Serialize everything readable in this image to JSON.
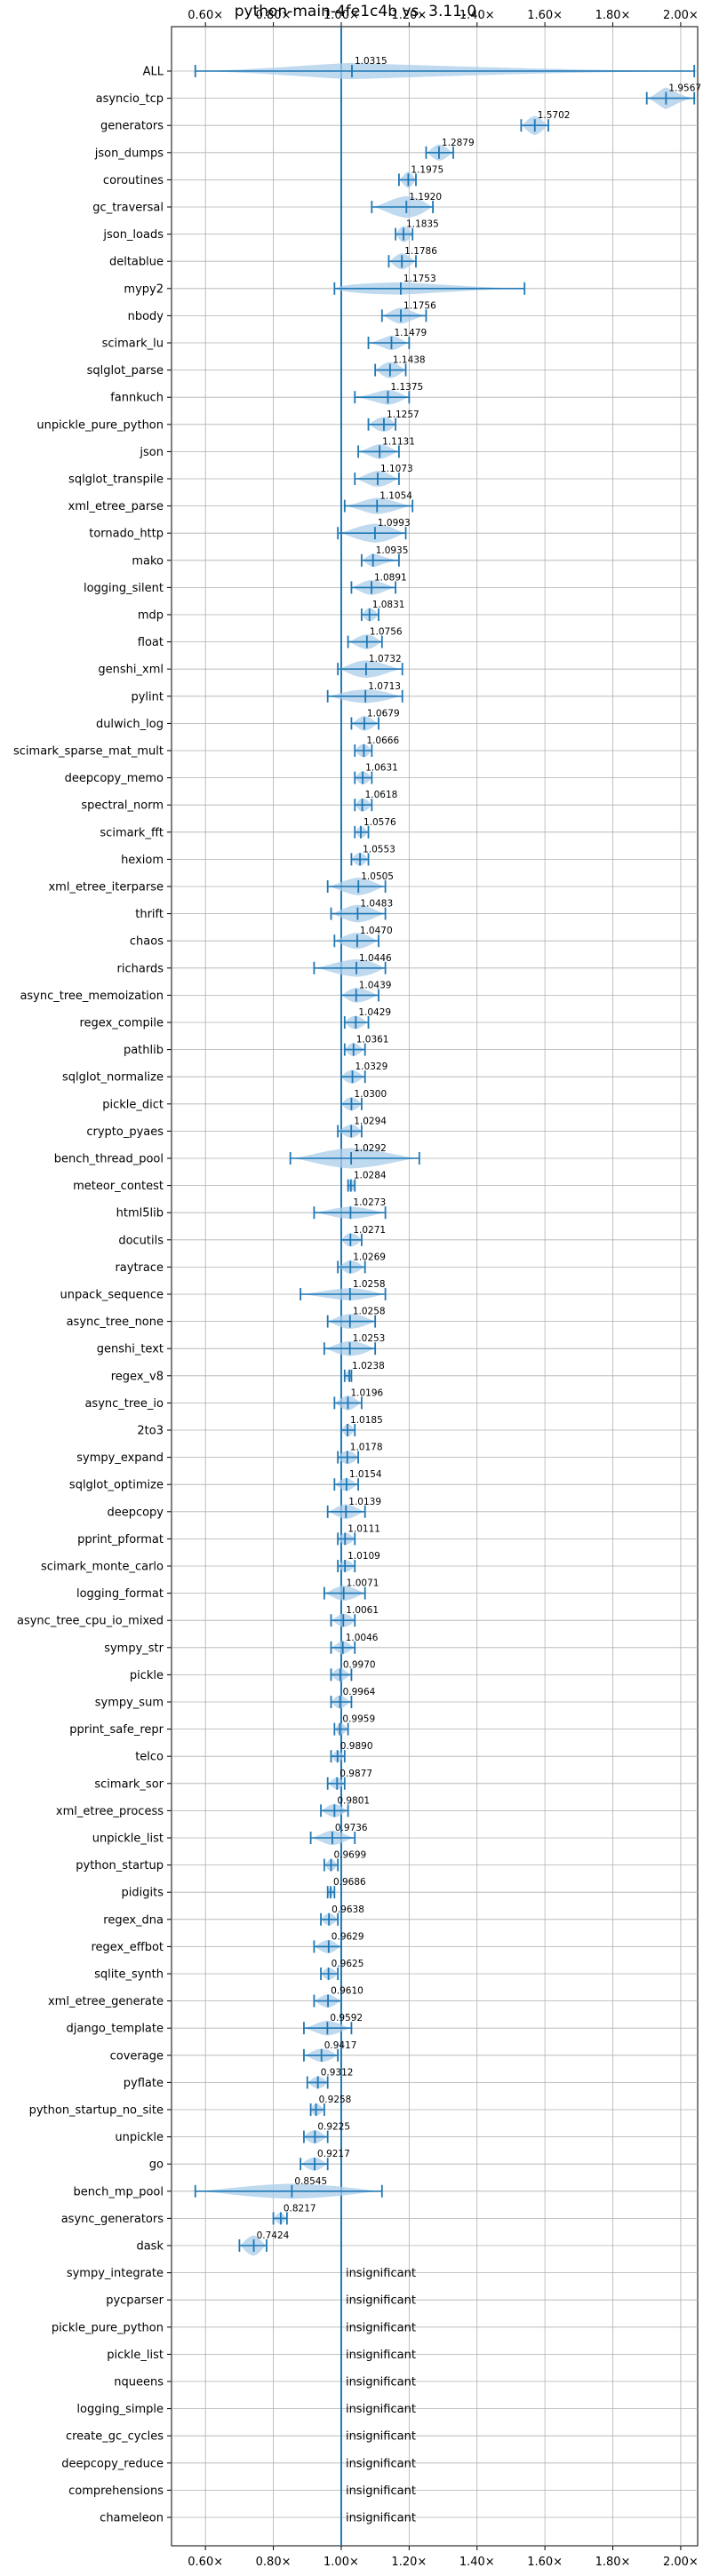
{
  "chart_data": {
    "type": "violin",
    "title": "python-main-4fe1c4b vs. 3.11.0",
    "xlabel": "",
    "ylabel": "",
    "xlim": [
      0.5,
      2.05
    ],
    "x_ticks": [
      0.6,
      0.8,
      1.0,
      1.2,
      1.4,
      1.6,
      1.8,
      2.0
    ],
    "x_tick_labels": [
      "0.60×",
      "0.80×",
      "1.00×",
      "1.20×",
      "1.40×",
      "1.60×",
      "1.80×",
      "2.00×"
    ],
    "reference_line": 1.0,
    "grid": true,
    "colors": {
      "violin": "#a9cce9",
      "line": "#1f77b4",
      "grid": "#b0b0b0"
    },
    "insignificant_label": "insignificant",
    "benchmarks": [
      {
        "name": "ALL",
        "label": "1.0315",
        "mean": 1.0315,
        "min": 0.57,
        "max": 2.04,
        "q1": 0.93,
        "q3": 1.15,
        "width": 0.6
      },
      {
        "name": "asyncio_tcp",
        "label": "1.9567",
        "mean": 1.9567,
        "min": 1.9,
        "max": 2.04,
        "q1": 1.94,
        "q3": 1.97,
        "width": 0.8
      },
      {
        "name": "generators",
        "label": "1.5702",
        "mean": 1.5702,
        "min": 1.53,
        "max": 1.61,
        "q1": 1.55,
        "q3": 1.59,
        "width": 0.7
      },
      {
        "name": "json_dumps",
        "label": "1.2879",
        "mean": 1.2879,
        "min": 1.25,
        "max": 1.33,
        "q1": 1.27,
        "q3": 1.31,
        "width": 0.6
      },
      {
        "name": "coroutines",
        "label": "1.1975",
        "mean": 1.1975,
        "min": 1.17,
        "max": 1.22,
        "q1": 1.185,
        "q3": 1.21,
        "width": 0.6
      },
      {
        "name": "gc_traversal",
        "label": "1.1920",
        "mean": 1.192,
        "min": 1.09,
        "max": 1.27,
        "q1": 1.15,
        "q3": 1.24,
        "width": 0.8
      },
      {
        "name": "json_loads",
        "label": "1.1835",
        "mean": 1.1835,
        "min": 1.16,
        "max": 1.21,
        "q1": 1.17,
        "q3": 1.2,
        "width": 0.6
      },
      {
        "name": "deltablue",
        "label": "1.1786",
        "mean": 1.1786,
        "min": 1.14,
        "max": 1.22,
        "q1": 1.16,
        "q3": 1.2,
        "width": 0.6
      },
      {
        "name": "mypy2",
        "label": "1.1753",
        "mean": 1.1753,
        "min": 0.98,
        "max": 1.54,
        "q1": 1.0,
        "q3": 1.25,
        "width": 0.45
      },
      {
        "name": "nbody",
        "label": "1.1756",
        "mean": 1.1756,
        "min": 1.12,
        "max": 1.25,
        "q1": 1.15,
        "q3": 1.2,
        "width": 0.6
      },
      {
        "name": "scimark_lu",
        "label": "1.1479",
        "mean": 1.1479,
        "min": 1.08,
        "max": 1.2,
        "q1": 1.13,
        "q3": 1.17,
        "width": 0.55
      },
      {
        "name": "sqlglot_parse",
        "label": "1.1438",
        "mean": 1.1438,
        "min": 1.1,
        "max": 1.19,
        "q1": 1.12,
        "q3": 1.17,
        "width": 0.6
      },
      {
        "name": "fannkuch",
        "label": "1.1375",
        "mean": 1.1375,
        "min": 1.04,
        "max": 1.2,
        "q1": 1.11,
        "q3": 1.17,
        "width": 0.55
      },
      {
        "name": "unpickle_pure_python",
        "label": "1.1257",
        "mean": 1.1257,
        "min": 1.08,
        "max": 1.16,
        "q1": 1.1,
        "q3": 1.15,
        "width": 0.55
      },
      {
        "name": "json",
        "label": "1.1131",
        "mean": 1.1131,
        "min": 1.05,
        "max": 1.17,
        "q1": 1.09,
        "q3": 1.14,
        "width": 0.55
      },
      {
        "name": "sqlglot_transpile",
        "label": "1.1073",
        "mean": 1.1073,
        "min": 1.04,
        "max": 1.17,
        "q1": 1.08,
        "q3": 1.14,
        "width": 0.6
      },
      {
        "name": "xml_etree_parse",
        "label": "1.1054",
        "mean": 1.1054,
        "min": 1.01,
        "max": 1.21,
        "q1": 1.07,
        "q3": 1.15,
        "width": 0.6
      },
      {
        "name": "tornado_http",
        "label": "1.0993",
        "mean": 1.0993,
        "min": 0.99,
        "max": 1.19,
        "q1": 1.05,
        "q3": 1.15,
        "width": 0.7
      },
      {
        "name": "mako",
        "label": "1.0935",
        "mean": 1.0935,
        "min": 1.06,
        "max": 1.17,
        "q1": 1.08,
        "q3": 1.11,
        "width": 0.5
      },
      {
        "name": "logging_silent",
        "label": "1.0891",
        "mean": 1.0891,
        "min": 1.03,
        "max": 1.16,
        "q1": 1.06,
        "q3": 1.12,
        "width": 0.55
      },
      {
        "name": "mdp",
        "label": "1.0831",
        "mean": 1.0831,
        "min": 1.06,
        "max": 1.11,
        "q1": 1.07,
        "q3": 1.1,
        "width": 0.5
      },
      {
        "name": "float",
        "label": "1.0756",
        "mean": 1.0756,
        "min": 1.02,
        "max": 1.12,
        "q1": 1.05,
        "q3": 1.1,
        "width": 0.55
      },
      {
        "name": "genshi_xml",
        "label": "1.0732",
        "mean": 1.0732,
        "min": 0.99,
        "max": 1.18,
        "q1": 1.03,
        "q3": 1.12,
        "width": 0.65
      },
      {
        "name": "pylint",
        "label": "1.0713",
        "mean": 1.0713,
        "min": 0.96,
        "max": 1.18,
        "q1": 1.01,
        "q3": 1.13,
        "width": 0.5
      },
      {
        "name": "dulwich_log",
        "label": "1.0679",
        "mean": 1.0679,
        "min": 1.03,
        "max": 1.11,
        "q1": 1.05,
        "q3": 1.09,
        "width": 0.55
      },
      {
        "name": "scimark_sparse_mat_mult",
        "label": "1.0666",
        "mean": 1.0666,
        "min": 1.04,
        "max": 1.09,
        "q1": 1.05,
        "q3": 1.08,
        "width": 0.5
      },
      {
        "name": "deepcopy_memo",
        "label": "1.0631",
        "mean": 1.0631,
        "min": 1.04,
        "max": 1.09,
        "q1": 1.05,
        "q3": 1.08,
        "width": 0.5
      },
      {
        "name": "spectral_norm",
        "label": "1.0618",
        "mean": 1.0618,
        "min": 1.04,
        "max": 1.09,
        "q1": 1.05,
        "q3": 1.08,
        "width": 0.5
      },
      {
        "name": "scimark_fft",
        "label": "1.0576",
        "mean": 1.0576,
        "min": 1.04,
        "max": 1.08,
        "q1": 1.05,
        "q3": 1.07,
        "width": 0.45
      },
      {
        "name": "hexiom",
        "label": "1.0553",
        "mean": 1.0553,
        "min": 1.03,
        "max": 1.08,
        "q1": 1.04,
        "q3": 1.07,
        "width": 0.5
      },
      {
        "name": "xml_etree_iterparse",
        "label": "1.0505",
        "mean": 1.0505,
        "min": 0.96,
        "max": 1.13,
        "q1": 1.01,
        "q3": 1.09,
        "width": 0.65
      },
      {
        "name": "thrift",
        "label": "1.0483",
        "mean": 1.0483,
        "min": 0.97,
        "max": 1.13,
        "q1": 1.01,
        "q3": 1.09,
        "width": 0.65
      },
      {
        "name": "chaos",
        "label": "1.0470",
        "mean": 1.047,
        "min": 0.98,
        "max": 1.11,
        "q1": 1.01,
        "q3": 1.08,
        "width": 0.6
      },
      {
        "name": "richards",
        "label": "1.0446",
        "mean": 1.0446,
        "min": 0.92,
        "max": 1.13,
        "q1": 0.99,
        "q3": 1.1,
        "width": 0.65
      },
      {
        "name": "async_tree_memoization",
        "label": "1.0439",
        "mean": 1.0439,
        "min": 1.0,
        "max": 1.11,
        "q1": 1.02,
        "q3": 1.08,
        "width": 0.55
      },
      {
        "name": "regex_compile",
        "label": "1.0429",
        "mean": 1.0429,
        "min": 1.01,
        "max": 1.08,
        "q1": 1.02,
        "q3": 1.06,
        "width": 0.5
      },
      {
        "name": "pathlib",
        "label": "1.0361",
        "mean": 1.0361,
        "min": 1.01,
        "max": 1.07,
        "q1": 1.02,
        "q3": 1.05,
        "width": 0.5
      },
      {
        "name": "sqlglot_normalize",
        "label": "1.0329",
        "mean": 1.0329,
        "min": 1.0,
        "max": 1.07,
        "q1": 1.01,
        "q3": 1.05,
        "width": 0.5
      },
      {
        "name": "pickle_dict",
        "label": "1.0300",
        "mean": 1.03,
        "min": 1.0,
        "max": 1.06,
        "q1": 1.01,
        "q3": 1.05,
        "width": 0.5
      },
      {
        "name": "crypto_pyaes",
        "label": "1.0294",
        "mean": 1.0294,
        "min": 0.99,
        "max": 1.06,
        "q1": 1.01,
        "q3": 1.05,
        "width": 0.5
      },
      {
        "name": "bench_thread_pool",
        "label": "1.0292",
        "mean": 1.0292,
        "min": 0.85,
        "max": 1.23,
        "q1": 0.95,
        "q3": 1.12,
        "width": 0.75
      },
      {
        "name": "meteor_contest",
        "label": "1.0284",
        "mean": 1.0284,
        "min": 1.02,
        "max": 1.04,
        "q1": 1.02,
        "q3": 1.04,
        "width": 0.45
      },
      {
        "name": "html5lib",
        "label": "1.0273",
        "mean": 1.0273,
        "min": 0.92,
        "max": 1.13,
        "q1": 0.98,
        "q3": 1.08,
        "width": 0.45
      },
      {
        "name": "docutils",
        "label": "1.0271",
        "mean": 1.0271,
        "min": 1.0,
        "max": 1.06,
        "q1": 1.01,
        "q3": 1.05,
        "width": 0.5
      },
      {
        "name": "raytrace",
        "label": "1.0269",
        "mean": 1.0269,
        "min": 0.99,
        "max": 1.07,
        "q1": 1.01,
        "q3": 1.05,
        "width": 0.5
      },
      {
        "name": "unpack_sequence",
        "label": "1.0258",
        "mean": 1.0258,
        "min": 0.88,
        "max": 1.13,
        "q1": 0.97,
        "q3": 1.08,
        "width": 0.45
      },
      {
        "name": "async_tree_none",
        "label": "1.0258",
        "mean": 1.0258,
        "min": 0.96,
        "max": 1.1,
        "q1": 0.99,
        "q3": 1.07,
        "width": 0.55
      },
      {
        "name": "genshi_text",
        "label": "1.0253",
        "mean": 1.0253,
        "min": 0.95,
        "max": 1.1,
        "q1": 0.99,
        "q3": 1.07,
        "width": 0.55
      },
      {
        "name": "regex_v8",
        "label": "1.0238",
        "mean": 1.0238,
        "min": 1.01,
        "max": 1.03,
        "q1": 1.015,
        "q3": 1.03,
        "width": 0.4
      },
      {
        "name": "async_tree_io",
        "label": "1.0196",
        "mean": 1.0196,
        "min": 0.98,
        "max": 1.06,
        "q1": 1.0,
        "q3": 1.04,
        "width": 0.55
      },
      {
        "name": "2to3",
        "label": "1.0185",
        "mean": 1.0185,
        "min": 1.0,
        "max": 1.04,
        "q1": 1.01,
        "q3": 1.03,
        "width": 0.5
      },
      {
        "name": "sympy_expand",
        "label": "1.0178",
        "mean": 1.0178,
        "min": 0.99,
        "max": 1.05,
        "q1": 1.0,
        "q3": 1.04,
        "width": 0.5
      },
      {
        "name": "sqlglot_optimize",
        "label": "1.0154",
        "mean": 1.0154,
        "min": 0.98,
        "max": 1.05,
        "q1": 1.0,
        "q3": 1.03,
        "width": 0.5
      },
      {
        "name": "deepcopy",
        "label": "1.0139",
        "mean": 1.0139,
        "min": 0.96,
        "max": 1.07,
        "q1": 0.99,
        "q3": 1.04,
        "width": 0.55
      },
      {
        "name": "pprint_pformat",
        "label": "1.0111",
        "mean": 1.0111,
        "min": 0.99,
        "max": 1.04,
        "q1": 1.0,
        "q3": 1.03,
        "width": 0.45
      },
      {
        "name": "scimark_monte_carlo",
        "label": "1.0109",
        "mean": 1.0109,
        "min": 0.99,
        "max": 1.04,
        "q1": 1.0,
        "q3": 1.03,
        "width": 0.45
      },
      {
        "name": "logging_format",
        "label": "1.0071",
        "mean": 1.0071,
        "min": 0.95,
        "max": 1.07,
        "q1": 0.98,
        "q3": 1.04,
        "width": 0.55
      },
      {
        "name": "async_tree_cpu_io_mixed",
        "label": "1.0061",
        "mean": 1.0061,
        "min": 0.97,
        "max": 1.04,
        "q1": 0.99,
        "q3": 1.03,
        "width": 0.5
      },
      {
        "name": "sympy_str",
        "label": "1.0046",
        "mean": 1.0046,
        "min": 0.97,
        "max": 1.04,
        "q1": 0.99,
        "q3": 1.02,
        "width": 0.5
      },
      {
        "name": "pickle",
        "label": "0.9970",
        "mean": 0.997,
        "min": 0.97,
        "max": 1.03,
        "q1": 0.98,
        "q3": 1.01,
        "width": 0.5
      },
      {
        "name": "sympy_sum",
        "label": "0.9964",
        "mean": 0.9964,
        "min": 0.97,
        "max": 1.03,
        "q1": 0.98,
        "q3": 1.01,
        "width": 0.5
      },
      {
        "name": "pprint_safe_repr",
        "label": "0.9959",
        "mean": 0.9959,
        "min": 0.98,
        "max": 1.02,
        "q1": 0.99,
        "q3": 1.01,
        "width": 0.45
      },
      {
        "name": "telco",
        "label": "0.9890",
        "mean": 0.989,
        "min": 0.97,
        "max": 1.01,
        "q1": 0.98,
        "q3": 1.0,
        "width": 0.45
      },
      {
        "name": "scimark_sor",
        "label": "0.9877",
        "mean": 0.9877,
        "min": 0.96,
        "max": 1.01,
        "q1": 0.975,
        "q3": 1.0,
        "width": 0.45
      },
      {
        "name": "xml_etree_process",
        "label": "0.9801",
        "mean": 0.9801,
        "min": 0.94,
        "max": 1.02,
        "q1": 0.96,
        "q3": 1.0,
        "width": 0.5
      },
      {
        "name": "unpickle_list",
        "label": "0.9736",
        "mean": 0.9736,
        "min": 0.91,
        "max": 1.04,
        "q1": 0.95,
        "q3": 1.0,
        "width": 0.55
      },
      {
        "name": "python_startup",
        "label": "0.9699",
        "mean": 0.9699,
        "min": 0.95,
        "max": 0.99,
        "q1": 0.96,
        "q3": 0.98,
        "width": 0.45
      },
      {
        "name": "pidigits",
        "label": "0.9686",
        "mean": 0.9686,
        "min": 0.96,
        "max": 0.98,
        "q1": 0.963,
        "q3": 0.975,
        "width": 0.4
      },
      {
        "name": "regex_dna",
        "label": "0.9638",
        "mean": 0.9638,
        "min": 0.94,
        "max": 0.99,
        "q1": 0.95,
        "q3": 0.98,
        "width": 0.45
      },
      {
        "name": "regex_effbot",
        "label": "0.9629",
        "mean": 0.9629,
        "min": 0.92,
        "max": 1.0,
        "q1": 0.94,
        "q3": 0.98,
        "width": 0.5
      },
      {
        "name": "sqlite_synth",
        "label": "0.9625",
        "mean": 0.9625,
        "min": 0.94,
        "max": 0.99,
        "q1": 0.95,
        "q3": 0.98,
        "width": 0.45
      },
      {
        "name": "xml_etree_generate",
        "label": "0.9610",
        "mean": 0.961,
        "min": 0.92,
        "max": 1.0,
        "q1": 0.94,
        "q3": 0.98,
        "width": 0.5
      },
      {
        "name": "django_template",
        "label": "0.9592",
        "mean": 0.9592,
        "min": 0.89,
        "max": 1.03,
        "q1": 0.93,
        "q3": 0.99,
        "width": 0.55
      },
      {
        "name": "coverage",
        "label": "0.9417",
        "mean": 0.9417,
        "min": 0.89,
        "max": 0.99,
        "q1": 0.92,
        "q3": 0.97,
        "width": 0.5
      },
      {
        "name": "pyflate",
        "label": "0.9312",
        "mean": 0.9312,
        "min": 0.9,
        "max": 0.96,
        "q1": 0.915,
        "q3": 0.95,
        "width": 0.45
      },
      {
        "name": "python_startup_no_site",
        "label": "0.9258",
        "mean": 0.9258,
        "min": 0.91,
        "max": 0.95,
        "q1": 0.915,
        "q3": 0.94,
        "width": 0.45
      },
      {
        "name": "unpickle",
        "label": "0.9225",
        "mean": 0.9225,
        "min": 0.89,
        "max": 0.96,
        "q1": 0.9,
        "q3": 0.94,
        "width": 0.5
      },
      {
        "name": "go",
        "label": "0.9217",
        "mean": 0.9217,
        "min": 0.88,
        "max": 0.96,
        "q1": 0.9,
        "q3": 0.94,
        "width": 0.5
      },
      {
        "name": "bench_mp_pool",
        "label": "0.8545",
        "mean": 0.8545,
        "min": 0.57,
        "max": 1.12,
        "q1": 0.72,
        "q3": 1.0,
        "width": 0.55
      },
      {
        "name": "async_generators",
        "label": "0.8217",
        "mean": 0.8217,
        "min": 0.8,
        "max": 0.84,
        "q1": 0.81,
        "q3": 0.83,
        "width": 0.45
      },
      {
        "name": "dask",
        "label": "0.7424",
        "mean": 0.7424,
        "min": 0.7,
        "max": 0.78,
        "q1": 0.72,
        "q3": 0.76,
        "width": 0.75
      },
      {
        "name": "sympy_integrate",
        "insignificant": true
      },
      {
        "name": "pycparser",
        "insignificant": true
      },
      {
        "name": "pickle_pure_python",
        "insignificant": true
      },
      {
        "name": "pickle_list",
        "insignificant": true
      },
      {
        "name": "nqueens",
        "insignificant": true
      },
      {
        "name": "logging_simple",
        "insignificant": true
      },
      {
        "name": "create_gc_cycles",
        "insignificant": true
      },
      {
        "name": "deepcopy_reduce",
        "insignificant": true
      },
      {
        "name": "comprehensions",
        "insignificant": true
      },
      {
        "name": "chameleon",
        "insignificant": true
      }
    ]
  }
}
